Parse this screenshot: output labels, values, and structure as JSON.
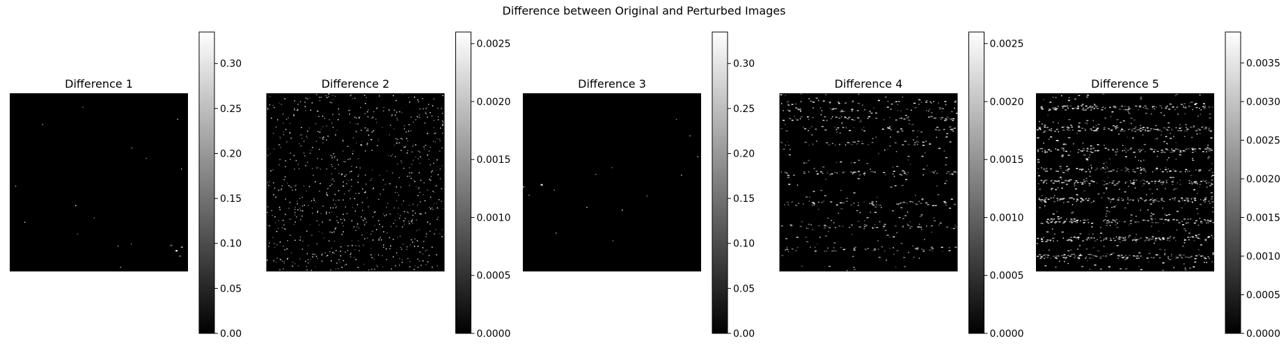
{
  "figure": {
    "title": "Difference between Original and Perturbed Images"
  },
  "chart_data": [
    {
      "type": "heatmap",
      "title": "Difference 1",
      "colormap": "gray",
      "axis": "off",
      "colorbar": {
        "range": [
          0,
          0.335
        ],
        "ticks": [
          0.0,
          0.05,
          0.1,
          0.15,
          0.2,
          0.25,
          0.3
        ],
        "tick_labels": [
          "0.00",
          "0.05",
          "0.10",
          "0.15",
          "0.20",
          "0.25",
          "0.30"
        ]
      },
      "pattern": "mostly-black",
      "bright_spots": [
        [
          0.93,
          0.88,
          0.335
        ],
        [
          0.96,
          0.86,
          0.2
        ],
        [
          0.9,
          0.85,
          0.15
        ],
        [
          0.95,
          0.91,
          0.12
        ]
      ],
      "noise_density": 0.01
    },
    {
      "type": "heatmap",
      "title": "Difference 2",
      "colormap": "gray",
      "axis": "off",
      "colorbar": {
        "range": [
          0,
          0.0026
        ],
        "ticks": [
          0.0,
          0.0005,
          0.001,
          0.0015,
          0.002,
          0.0025
        ],
        "tick_labels": [
          "0.0000",
          "0.0005",
          "0.0010",
          "0.0015",
          "0.0020",
          "0.0025"
        ]
      },
      "pattern": "scattered",
      "bright_spots": [],
      "noise_density": 0.6
    },
    {
      "type": "heatmap",
      "title": "Difference 3",
      "colormap": "gray",
      "axis": "off",
      "colorbar": {
        "range": [
          0,
          0.335
        ],
        "ticks": [
          0.0,
          0.05,
          0.1,
          0.15,
          0.2,
          0.25,
          0.3
        ],
        "tick_labels": [
          "0.00",
          "0.05",
          "0.10",
          "0.15",
          "0.20",
          "0.25",
          "0.30"
        ]
      },
      "pattern": "mostly-black",
      "bright_spots": [
        [
          0.1,
          0.51,
          0.335
        ]
      ],
      "noise_density": 0.01
    },
    {
      "type": "heatmap",
      "title": "Difference 4",
      "colormap": "gray",
      "axis": "off",
      "colorbar": {
        "range": [
          0,
          0.0026
        ],
        "ticks": [
          0.0,
          0.0005,
          0.001,
          0.0015,
          0.002,
          0.0025
        ],
        "tick_labels": [
          "0.0000",
          "0.0005",
          "0.0010",
          "0.0015",
          "0.0020",
          "0.0025"
        ]
      },
      "pattern": "streaks-top",
      "bright_spots": [],
      "noise_density": 0.45
    },
    {
      "type": "heatmap",
      "title": "Difference 5",
      "colormap": "gray",
      "axis": "off",
      "colorbar": {
        "range": [
          0,
          0.0039
        ],
        "ticks": [
          0.0,
          0.0005,
          0.001,
          0.0015,
          0.002,
          0.0025,
          0.003,
          0.0035
        ],
        "tick_labels": [
          "0.0000",
          "0.0005",
          "0.0010",
          "0.0015",
          "0.0020",
          "0.0025",
          "0.0030",
          "0.0035"
        ]
      },
      "pattern": "streaks-dense",
      "bright_spots": [],
      "noise_density": 1.0
    }
  ]
}
